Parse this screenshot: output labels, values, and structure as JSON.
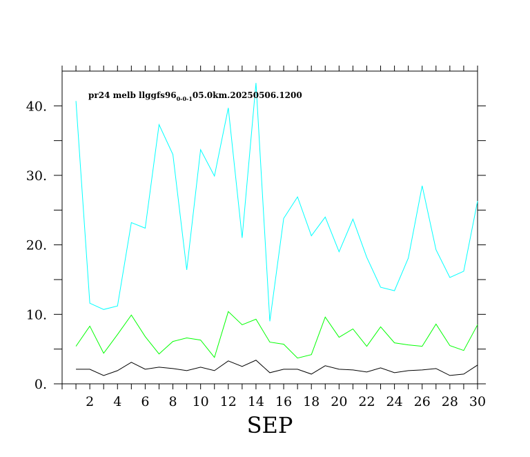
{
  "chart_data": {
    "type": "line",
    "title": "pr24 melb llggfs96",
    "title_subscript": "0-0-1",
    "title_suffix": "05.0km.20250506.1200",
    "xlabel": "SEP",
    "ylabel": "",
    "xlim": [
      0,
      30
    ],
    "ylim": [
      0,
      45
    ],
    "x_ticks": [
      2,
      4,
      6,
      8,
      10,
      12,
      14,
      16,
      18,
      20,
      22,
      24,
      26,
      28,
      30
    ],
    "x_tick_labels": [
      "2",
      "4",
      "6",
      "8",
      "10",
      "12",
      "14",
      "16",
      "18",
      "20",
      "22",
      "24",
      "26",
      "28",
      "30"
    ],
    "y_ticks": [
      0,
      10,
      20,
      30,
      40
    ],
    "y_tick_labels": [
      "0.",
      "10.",
      "20.",
      "30.",
      "40."
    ],
    "x": [
      1,
      2,
      3,
      4,
      5,
      6,
      7,
      8,
      9,
      10,
      11,
      12,
      13,
      14,
      15,
      16,
      17,
      18,
      19,
      20,
      21,
      22,
      23,
      24,
      25,
      26,
      27,
      28,
      29,
      30
    ],
    "series": [
      {
        "name": "cyan",
        "color": "#00ffff",
        "values": [
          40.7,
          11.6,
          10.7,
          11.2,
          23.2,
          22.4,
          37.3,
          33.0,
          16.4,
          33.7,
          29.9,
          39.7,
          21.0,
          43.3,
          9.0,
          23.8,
          26.9,
          21.3,
          24.0,
          19.0,
          23.7,
          18.2,
          13.9,
          13.4,
          18.1,
          28.5,
          19.3,
          15.3,
          16.2,
          26.3
        ]
      },
      {
        "name": "green",
        "color": "#00ff00",
        "values": [
          5.4,
          8.3,
          4.4,
          7.1,
          9.9,
          6.8,
          4.3,
          6.1,
          6.6,
          6.3,
          3.8,
          10.4,
          8.5,
          9.3,
          6.0,
          5.7,
          3.7,
          4.2,
          9.6,
          6.7,
          7.9,
          5.4,
          8.2,
          5.9,
          5.6,
          5.4,
          8.6,
          5.5,
          4.8,
          8.5
        ]
      },
      {
        "name": "black",
        "color": "#000000",
        "values": [
          2.1,
          2.1,
          1.2,
          1.9,
          3.1,
          2.1,
          2.4,
          2.2,
          1.9,
          2.4,
          1.9,
          3.3,
          2.5,
          3.4,
          1.6,
          2.1,
          2.1,
          1.4,
          2.6,
          2.1,
          2.0,
          1.7,
          2.3,
          1.6,
          1.9,
          2.0,
          2.2,
          1.2,
          1.4,
          2.7
        ]
      }
    ]
  }
}
